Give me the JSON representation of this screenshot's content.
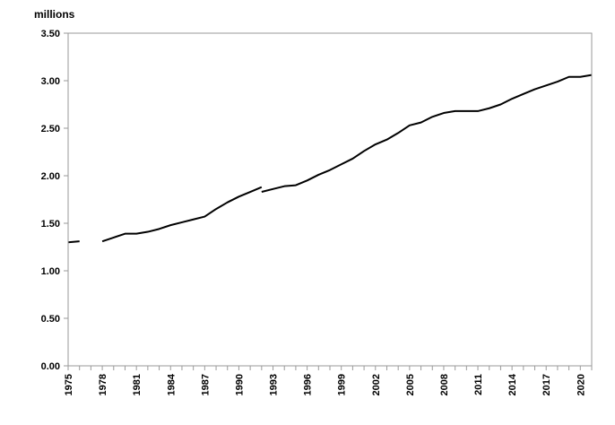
{
  "chart_data": {
    "type": "line",
    "title": "",
    "xlabel": "",
    "ylabel": "millions",
    "xlim": [
      1975,
      2021
    ],
    "ylim": [
      0,
      3.5
    ],
    "y_ticks": [
      "0.00",
      "0.50",
      "1.00",
      "1.50",
      "2.00",
      "2.50",
      "3.00",
      "3.50"
    ],
    "x_ticks": [
      "1975",
      "1978",
      "1981",
      "1984",
      "1987",
      "1990",
      "1993",
      "1996",
      "1999",
      "2002",
      "2005",
      "2008",
      "2011",
      "2014",
      "2017",
      "2020"
    ],
    "grid": false,
    "legend": "none",
    "line_color": "#000000",
    "series": [
      {
        "segments": [
          {
            "x": [
              1975,
              1976
            ],
            "y": [
              1.3,
              1.31
            ]
          },
          {
            "x": [
              1978,
              1979,
              1980,
              1981,
              1982,
              1983,
              1984,
              1985,
              1986,
              1987,
              1988,
              1989,
              1990,
              1991,
              1992
            ],
            "y": [
              1.31,
              1.35,
              1.39,
              1.39,
              1.41,
              1.44,
              1.48,
              1.51,
              1.54,
              1.57,
              1.65,
              1.72,
              1.78,
              1.83,
              1.88
            ]
          },
          {
            "x": [
              1992,
              1993,
              1994,
              1995,
              1996,
              1997,
              1998,
              1999,
              2000,
              2001,
              2002,
              2003,
              2004,
              2005,
              2006,
              2007,
              2008,
              2009,
              2010,
              2011,
              2012,
              2013,
              2014,
              2015,
              2016,
              2017,
              2018,
              2019,
              2020,
              2021
            ],
            "y": [
              1.83,
              1.86,
              1.89,
              1.9,
              1.95,
              2.01,
              2.06,
              2.12,
              2.18,
              2.26,
              2.33,
              2.38,
              2.45,
              2.53,
              2.56,
              2.62,
              2.66,
              2.68,
              2.68,
              2.68,
              2.71,
              2.75,
              2.81,
              2.86,
              2.91,
              2.95,
              2.99,
              3.04,
              3.04,
              3.06
            ]
          }
        ]
      }
    ]
  }
}
